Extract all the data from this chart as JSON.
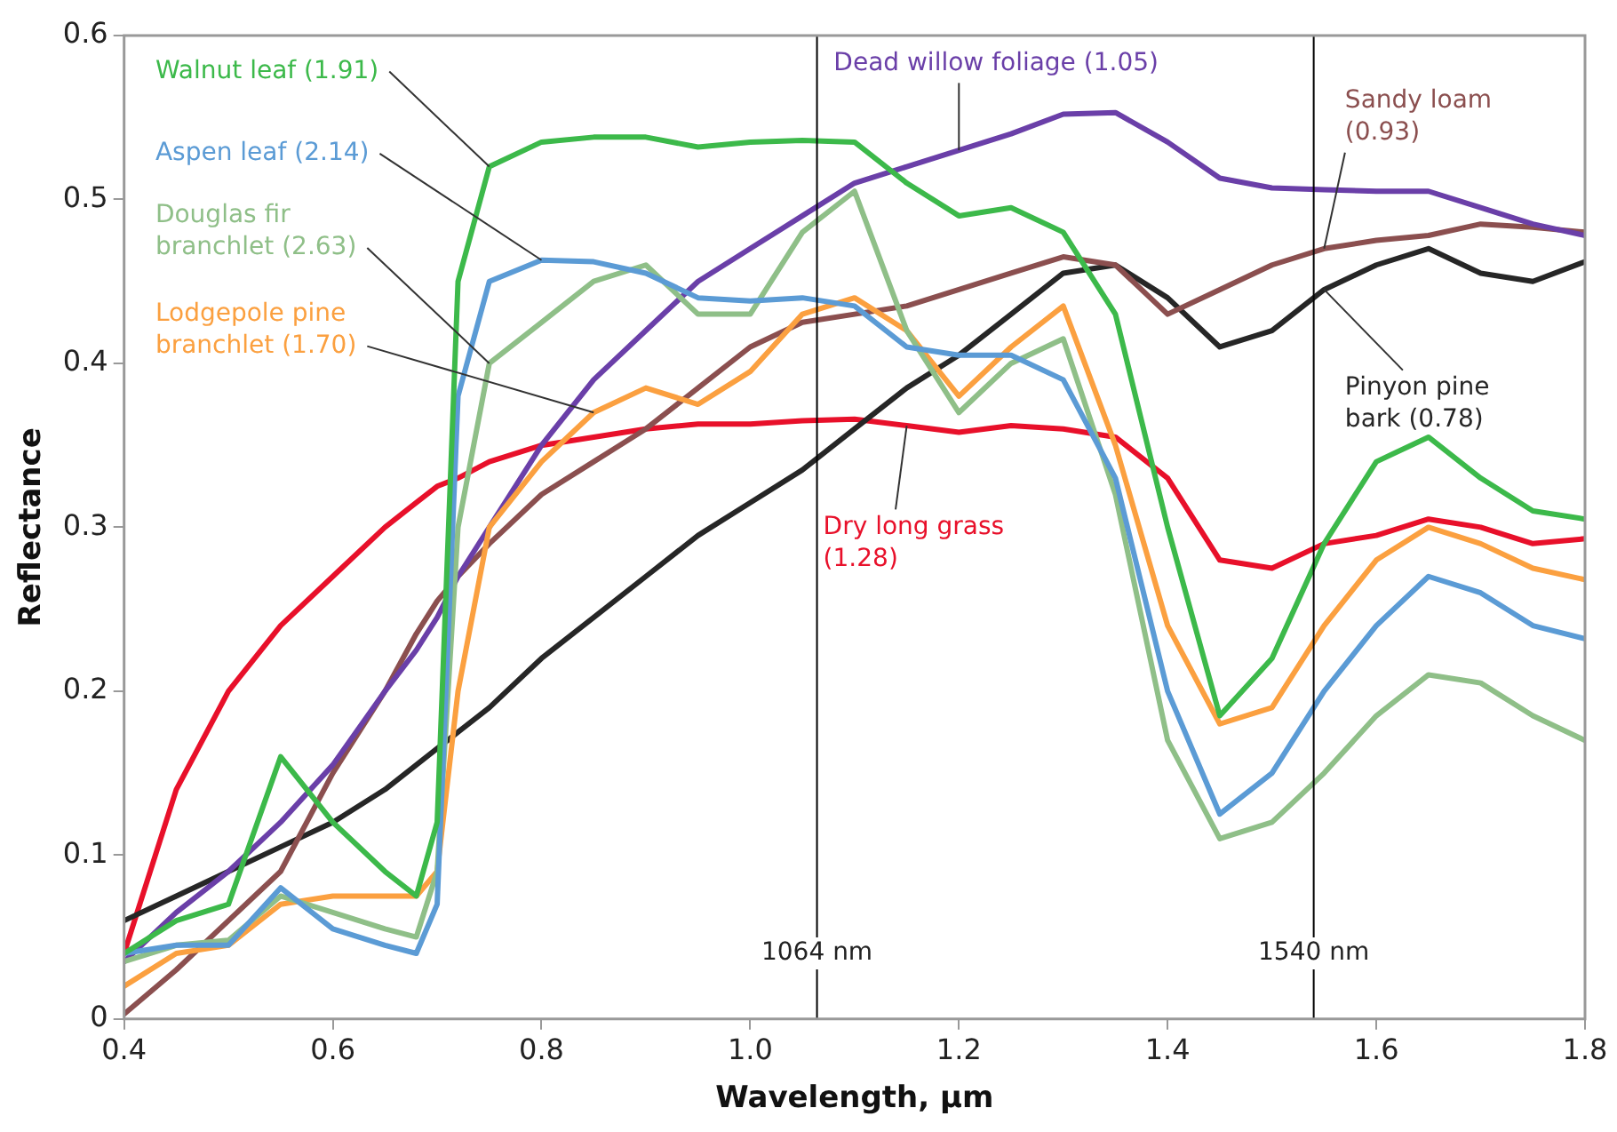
{
  "chart_data": {
    "type": "line",
    "xlabel": "Wavelength, µm",
    "ylabel": "Reflectance",
    "x": [
      0.4,
      0.45,
      0.5,
      0.55,
      0.6,
      0.65,
      0.68,
      0.7,
      0.72,
      0.75,
      0.8,
      0.85,
      0.9,
      0.95,
      1.0,
      1.05,
      1.1,
      1.15,
      1.2,
      1.25,
      1.3,
      1.35,
      1.4,
      1.45,
      1.5,
      1.55,
      1.6,
      1.65,
      1.7,
      1.75,
      1.8
    ],
    "series": [
      {
        "name": "Walnut leaf (1.91)",
        "color": "#3cb94a",
        "values": [
          0.04,
          0.06,
          0.07,
          0.16,
          0.12,
          0.09,
          0.075,
          0.12,
          0.45,
          0.52,
          0.535,
          0.538,
          0.538,
          0.532,
          0.535,
          0.536,
          0.535,
          0.51,
          0.49,
          0.495,
          0.48,
          0.43,
          0.3,
          0.185,
          0.22,
          0.29,
          0.34,
          0.355,
          0.33,
          0.31,
          0.305
        ]
      },
      {
        "name": "Aspen leaf (2.14)",
        "color": "#5b9bd5",
        "values": [
          0.04,
          0.045,
          0.045,
          0.08,
          0.055,
          0.045,
          0.04,
          0.07,
          0.38,
          0.45,
          0.463,
          0.462,
          0.455,
          0.44,
          0.438,
          0.44,
          0.435,
          0.41,
          0.405,
          0.405,
          0.39,
          0.33,
          0.2,
          0.125,
          0.15,
          0.2,
          0.24,
          0.27,
          0.26,
          0.24,
          0.232
        ]
      },
      {
        "name": "Douglas fir branchlet (2.63)",
        "color": "#8fbf88",
        "values": [
          0.035,
          0.045,
          0.048,
          0.075,
          0.065,
          0.055,
          0.05,
          0.09,
          0.3,
          0.4,
          0.425,
          0.45,
          0.46,
          0.43,
          0.43,
          0.48,
          0.505,
          0.42,
          0.37,
          0.4,
          0.415,
          0.32,
          0.17,
          0.11,
          0.12,
          0.15,
          0.185,
          0.21,
          0.205,
          0.185,
          0.17
        ]
      },
      {
        "name": "Lodgepole pine branchlet (1.70)",
        "color": "#fba040",
        "values": [
          0.02,
          0.04,
          0.045,
          0.07,
          0.075,
          0.075,
          0.075,
          0.09,
          0.2,
          0.3,
          0.34,
          0.37,
          0.385,
          0.375,
          0.395,
          0.43,
          0.44,
          0.42,
          0.38,
          0.41,
          0.435,
          0.35,
          0.24,
          0.18,
          0.19,
          0.24,
          0.28,
          0.3,
          0.29,
          0.275,
          0.268
        ]
      },
      {
        "name": "Dead willow foliage (1.05)",
        "color": "#6a3fa8",
        "values": [
          0.035,
          0.065,
          0.09,
          0.12,
          0.155,
          0.2,
          0.225,
          0.245,
          0.27,
          0.3,
          0.35,
          0.39,
          0.42,
          0.45,
          0.47,
          0.49,
          0.51,
          0.52,
          0.53,
          0.54,
          0.552,
          0.553,
          0.535,
          0.513,
          0.507,
          0.506,
          0.505,
          0.505,
          0.495,
          0.485,
          0.478
        ]
      },
      {
        "name": "Sandy loam (0.93)",
        "color": "#8b4f4f",
        "values": [
          0.003,
          0.03,
          0.06,
          0.09,
          0.15,
          0.2,
          0.235,
          0.255,
          0.27,
          0.29,
          0.32,
          0.34,
          0.36,
          0.385,
          0.41,
          0.425,
          0.43,
          0.435,
          0.445,
          0.455,
          0.465,
          0.46,
          0.43,
          0.445,
          0.46,
          0.47,
          0.475,
          0.478,
          0.485,
          0.483,
          0.48
        ]
      },
      {
        "name": "Pinyon pine bark (0.78)",
        "color": "#262626",
        "values": [
          0.06,
          0.075,
          0.09,
          0.105,
          0.12,
          0.14,
          0.155,
          0.165,
          0.175,
          0.19,
          0.22,
          0.245,
          0.27,
          0.295,
          0.315,
          0.335,
          0.36,
          0.385,
          0.405,
          0.43,
          0.455,
          0.46,
          0.44,
          0.41,
          0.42,
          0.445,
          0.46,
          0.47,
          0.455,
          0.45,
          0.462
        ]
      },
      {
        "name": "Dry long grass (1.28)",
        "color": "#e8102a",
        "values": [
          0.04,
          0.14,
          0.2,
          0.24,
          0.27,
          0.3,
          0.315,
          0.325,
          0.33,
          0.34,
          0.35,
          0.355,
          0.36,
          0.363,
          0.363,
          0.365,
          0.366,
          0.362,
          0.358,
          0.362,
          0.36,
          0.355,
          0.33,
          0.28,
          0.275,
          0.29,
          0.295,
          0.305,
          0.3,
          0.29,
          0.293
        ]
      }
    ],
    "xlim": [
      0.4,
      1.8
    ],
    "xticks": [
      0.4,
      0.6,
      0.8,
      {
        "value": 1,
        "label": "1.0"
      },
      1.2,
      1.4,
      1.6,
      1.8
    ],
    "ylim": [
      0,
      0.6
    ],
    "yticks": [
      0,
      0.1,
      0.2,
      0.3,
      0.4,
      0.5,
      0.6
    ],
    "ref_lines": [
      {
        "axis": "x",
        "value": 1.064,
        "label": "1064 nm",
        "color": "#000000"
      },
      {
        "axis": "x",
        "value": 1.54,
        "label": "1540 nm",
        "color": "#000000"
      }
    ],
    "grid": false,
    "legend": false,
    "marker": "none",
    "line_style": "solid"
  }
}
